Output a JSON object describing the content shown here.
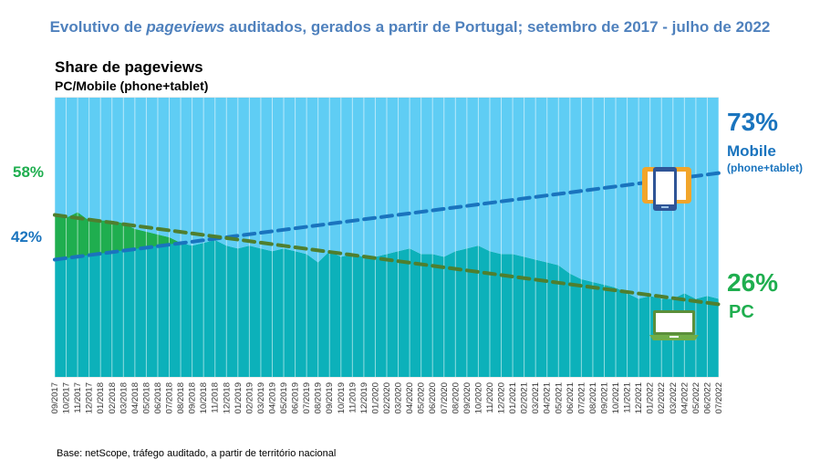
{
  "header": {
    "title_prefix": "Evolutivo de ",
    "title_italic": "pageviews",
    "title_suffix": " auditados, gerados a partir de Portugal; setembro de 2017 - julho de 2022",
    "subtitle": "Share de pageviews",
    "subtitle2": "PC/Mobile (phone+tablet)"
  },
  "footer": {
    "source": "Base: netScope, tráfego auditado, a partir de território nacional"
  },
  "colors": {
    "pc": "#0cb1ba",
    "pc_overshoot": "#1fae4f",
    "mobile": "#5fcdf4",
    "mobile_trend": "#1a74be",
    "pc_trend": "#4f7f2f",
    "mobile_text": "#1a74be",
    "pc_text": "#1fae4f",
    "title": "#4f81bd"
  },
  "labels": {
    "pc_start": "58%",
    "mobile_start": "42%",
    "mobile_end": "73%",
    "mobile_name": "Mobile",
    "mobile_sub": "(phone+tablet)",
    "pc_end": "26%",
    "pc_name": "PC"
  },
  "chart_data": {
    "type": "area",
    "title": "Share de pageviews",
    "subtitle": "PC/Mobile (phone+tablet)",
    "ylim": [
      0,
      100
    ],
    "grid": true,
    "x": [
      "09/2017",
      "10/2017",
      "11/2017",
      "12/2017",
      "01/2018",
      "02/2018",
      "03/2018",
      "04/2018",
      "05/2018",
      "06/2018",
      "07/2018",
      "08/2018",
      "09/2018",
      "10/2018",
      "11/2018",
      "12/2018",
      "01/2019",
      "02/2019",
      "03/2019",
      "04/2019",
      "05/2019",
      "06/2019",
      "07/2019",
      "08/2019",
      "09/2019",
      "10/2019",
      "11/2019",
      "12/2019",
      "01/2020",
      "02/2020",
      "03/2020",
      "04/2020",
      "05/2020",
      "06/2020",
      "07/2020",
      "08/2020",
      "09/2020",
      "10/2020",
      "11/2020",
      "12/2020",
      "01/2021",
      "02/2021",
      "03/2021",
      "04/2021",
      "05/2021",
      "06/2021",
      "07/2021",
      "08/2021",
      "09/2021",
      "10/2021",
      "11/2021",
      "12/2021",
      "01/2022",
      "02/2022",
      "03/2022",
      "04/2022",
      "05/2022",
      "06/2022",
      "07/2022"
    ],
    "series": [
      {
        "name": "PC",
        "values": [
          58,
          57,
          59,
          56,
          56,
          56,
          55,
          53,
          52,
          51,
          50,
          48,
          47,
          48,
          49,
          47,
          46,
          47,
          46,
          45,
          46,
          45,
          44,
          41,
          45,
          43,
          44,
          43,
          43,
          44,
          45,
          46,
          44,
          44,
          43,
          45,
          46,
          47,
          45,
          44,
          44,
          43,
          42,
          41,
          40,
          37,
          35,
          34,
          33,
          32,
          30,
          28,
          29,
          28,
          28,
          30,
          28,
          29,
          28
        ]
      },
      {
        "name": "Mobile",
        "values": [
          42,
          43,
          41,
          44,
          44,
          44,
          45,
          47,
          48,
          49,
          50,
          52,
          53,
          52,
          51,
          53,
          54,
          53,
          54,
          55,
          54,
          55,
          56,
          59,
          55,
          57,
          56,
          57,
          57,
          56,
          55,
          54,
          56,
          56,
          57,
          55,
          54,
          53,
          55,
          56,
          56,
          57,
          58,
          59,
          60,
          63,
          65,
          66,
          67,
          68,
          70,
          72,
          71,
          72,
          72,
          70,
          72,
          71,
          72
        ]
      }
    ],
    "trends": [
      {
        "name": "PC trend",
        "start": 58,
        "end": 26
      },
      {
        "name": "Mobile trend",
        "start": 42,
        "end": 73
      }
    ],
    "end_labels": {
      "PC": "26%",
      "Mobile": "73%"
    },
    "start_labels": {
      "PC": "58%",
      "Mobile": "42%"
    }
  }
}
